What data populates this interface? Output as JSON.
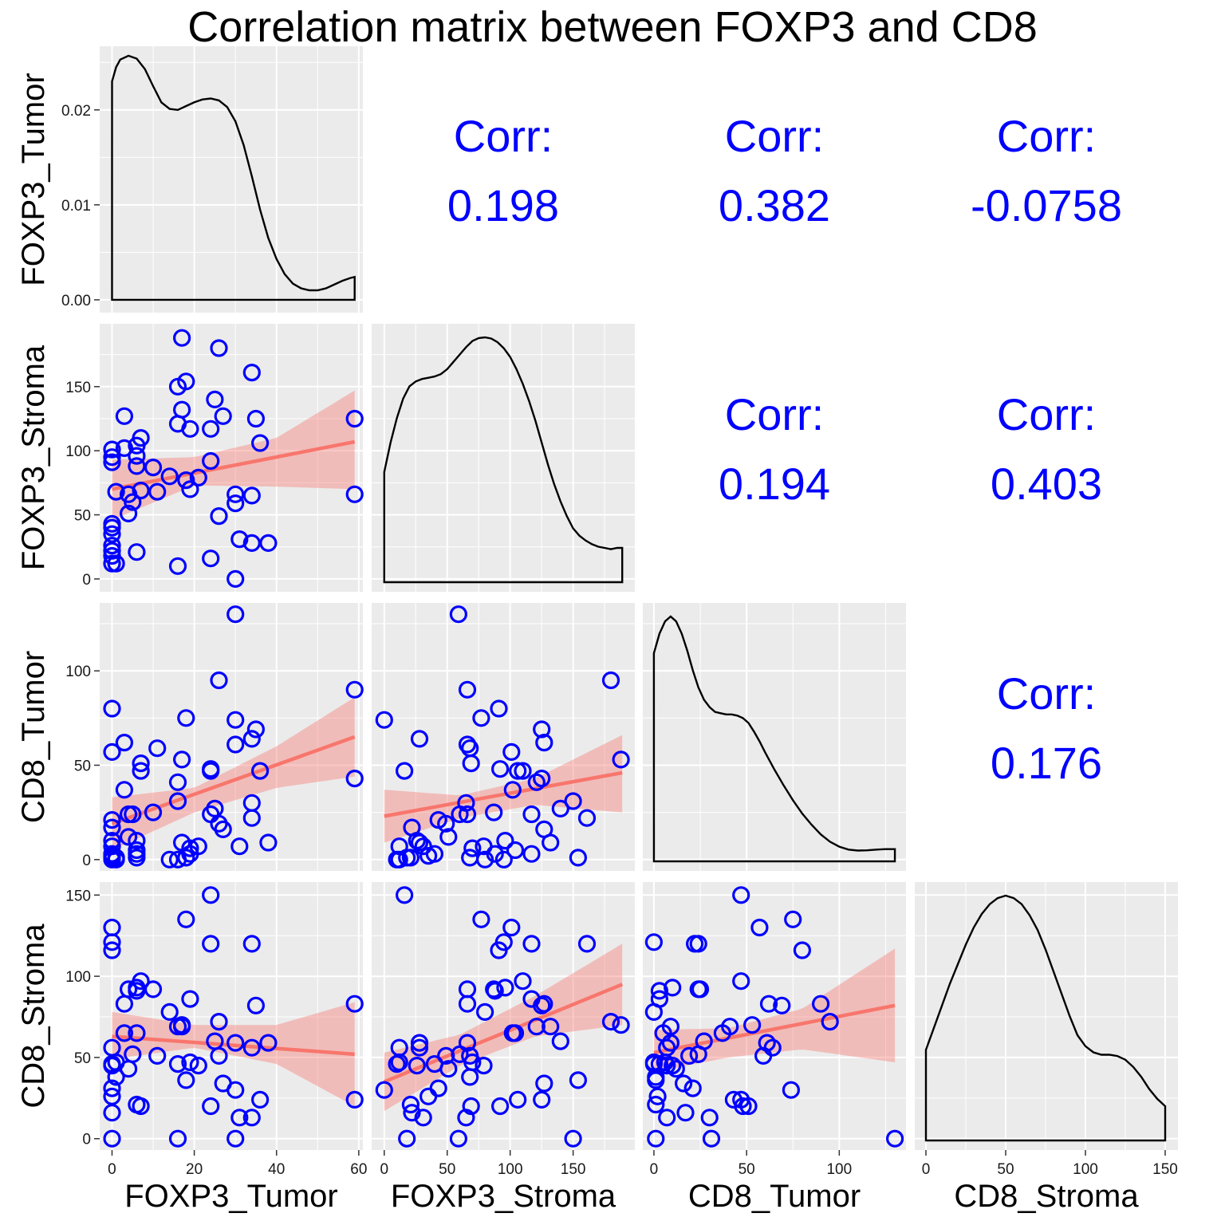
{
  "title": "Correlation matrix between FOXP3 and CD8",
  "variables": [
    "FOXP3_Tumor",
    "FOXP3_Stroma",
    "CD8_Tumor",
    "CD8_Stroma"
  ],
  "colors": {
    "panel": "#ebebeb",
    "grid": "#ffffff",
    "point": "#0000ff",
    "fit": "#f8766d",
    "band": "#f8766d",
    "corr_text": "#0000ff",
    "density": "#000000"
  },
  "chart_data": {
    "type": "scatter",
    "layout": "pairs-matrix 4x4: density on diagonal, scatter with linear fit + 95% band in lower triangle, correlation in upper triangle",
    "corr_label": "Corr:",
    "correlations": [
      {
        "row": 0,
        "col": 1,
        "value": "0.198"
      },
      {
        "row": 0,
        "col": 2,
        "value": "0.382"
      },
      {
        "row": 0,
        "col": 3,
        "value": "-0.0758"
      },
      {
        "row": 1,
        "col": 2,
        "value": "0.194"
      },
      {
        "row": 1,
        "col": 3,
        "value": "0.403"
      },
      {
        "row": 2,
        "col": 3,
        "value": "0.176"
      }
    ],
    "axes": {
      "FOXP3_Tumor": {
        "range": [
          -3,
          61
        ],
        "breaks": [
          0,
          20,
          40,
          60
        ],
        "labels": [
          "0",
          "20",
          "40",
          "60"
        ],
        "minor": [
          10,
          30,
          50
        ]
      },
      "FOXP3_Stroma": {
        "range": [
          -10,
          199
        ],
        "breaks": [
          0,
          50,
          100,
          150
        ],
        "labels": [
          "0",
          "50",
          "100",
          "150"
        ],
        "minor": [
          25,
          75,
          125,
          175
        ]
      },
      "CD8_Tumor": {
        "range": [
          -6,
          136
        ],
        "breaks": [
          0,
          50,
          100
        ],
        "labels": [
          "0",
          "50",
          "100"
        ],
        "minor": [
          25,
          75,
          125
        ]
      },
      "CD8_Stroma": {
        "range": [
          -7,
          158
        ],
        "breaks": [
          0,
          50,
          100,
          150
        ],
        "labels": [
          "0",
          "50",
          "100",
          "150"
        ],
        "minor": [
          25,
          75,
          125
        ]
      }
    },
    "density_axis": {
      "range": [
        -0.00135,
        0.0267
      ],
      "breaks": [
        0,
        0.01,
        0.02
      ],
      "labels": [
        "0.00",
        "0.01",
        "0.02"
      ],
      "minor": [
        0.005,
        0.015,
        0.025
      ]
    },
    "densities": [
      {
        "var": "FOXP3_Tumor",
        "points": [
          [
            0,
            0.023
          ],
          [
            1,
            0.0245
          ],
          [
            2,
            0.0253
          ],
          [
            4,
            0.0257
          ],
          [
            6,
            0.0254
          ],
          [
            8,
            0.0243
          ],
          [
            10,
            0.0225
          ],
          [
            12,
            0.0208
          ],
          [
            14,
            0.0201
          ],
          [
            16,
            0.02
          ],
          [
            18,
            0.0204
          ],
          [
            20,
            0.0208
          ],
          [
            22,
            0.0211
          ],
          [
            24,
            0.0212
          ],
          [
            26,
            0.021
          ],
          [
            28,
            0.0203
          ],
          [
            30,
            0.0188
          ],
          [
            32,
            0.0163
          ],
          [
            34,
            0.013
          ],
          [
            36,
            0.0095
          ],
          [
            38,
            0.0065
          ],
          [
            40,
            0.0043
          ],
          [
            42,
            0.0027
          ],
          [
            44,
            0.0017
          ],
          [
            46,
            0.0012
          ],
          [
            48,
            0.001
          ],
          [
            50,
            0.001
          ],
          [
            52,
            0.0012
          ],
          [
            54,
            0.0016
          ],
          [
            56,
            0.002
          ],
          [
            58,
            0.0023
          ],
          [
            59,
            0.0024
          ]
        ]
      },
      {
        "var": "FOXP3_Stroma",
        "points": [
          [
            0,
            0.45
          ],
          [
            5,
            0.57
          ],
          [
            10,
            0.67
          ],
          [
            15,
            0.75
          ],
          [
            20,
            0.8
          ],
          [
            25,
            0.82
          ],
          [
            30,
            0.83
          ],
          [
            35,
            0.835
          ],
          [
            40,
            0.84
          ],
          [
            45,
            0.85
          ],
          [
            50,
            0.87
          ],
          [
            55,
            0.9
          ],
          [
            60,
            0.93
          ],
          [
            65,
            0.96
          ],
          [
            70,
            0.985
          ],
          [
            75,
            0.997
          ],
          [
            80,
            1.0
          ],
          [
            85,
            0.995
          ],
          [
            90,
            0.98
          ],
          [
            95,
            0.955
          ],
          [
            100,
            0.92
          ],
          [
            105,
            0.87
          ],
          [
            110,
            0.81
          ],
          [
            115,
            0.74
          ],
          [
            120,
            0.66
          ],
          [
            125,
            0.57
          ],
          [
            130,
            0.48
          ],
          [
            135,
            0.4
          ],
          [
            140,
            0.33
          ],
          [
            145,
            0.27
          ],
          [
            150,
            0.22
          ],
          [
            155,
            0.19
          ],
          [
            160,
            0.17
          ],
          [
            165,
            0.155
          ],
          [
            170,
            0.145
          ],
          [
            175,
            0.14
          ],
          [
            180,
            0.135
          ],
          [
            185,
            0.14
          ],
          [
            189,
            0.14
          ]
        ]
      },
      {
        "var": "CD8_Tumor",
        "points": [
          [
            0,
            0.85
          ],
          [
            3,
            0.93
          ],
          [
            6,
            0.98
          ],
          [
            9,
            1.0
          ],
          [
            12,
            0.98
          ],
          [
            15,
            0.93
          ],
          [
            18,
            0.86
          ],
          [
            21,
            0.78
          ],
          [
            24,
            0.71
          ],
          [
            27,
            0.66
          ],
          [
            30,
            0.63
          ],
          [
            33,
            0.61
          ],
          [
            36,
            0.605
          ],
          [
            39,
            0.6
          ],
          [
            42,
            0.6
          ],
          [
            45,
            0.595
          ],
          [
            48,
            0.585
          ],
          [
            51,
            0.565
          ],
          [
            54,
            0.53
          ],
          [
            57,
            0.49
          ],
          [
            60,
            0.445
          ],
          [
            65,
            0.375
          ],
          [
            70,
            0.31
          ],
          [
            75,
            0.25
          ],
          [
            80,
            0.195
          ],
          [
            85,
            0.15
          ],
          [
            90,
            0.11
          ],
          [
            95,
            0.08
          ],
          [
            100,
            0.06
          ],
          [
            105,
            0.048
          ],
          [
            110,
            0.044
          ],
          [
            115,
            0.045
          ],
          [
            120,
            0.048
          ],
          [
            125,
            0.05
          ],
          [
            130,
            0.05
          ]
        ]
      },
      {
        "var": "CD8_Stroma",
        "points": [
          [
            0,
            0.37
          ],
          [
            5,
            0.46
          ],
          [
            10,
            0.55
          ],
          [
            15,
            0.64
          ],
          [
            20,
            0.72
          ],
          [
            25,
            0.8
          ],
          [
            30,
            0.87
          ],
          [
            35,
            0.925
          ],
          [
            40,
            0.965
          ],
          [
            45,
            0.99
          ],
          [
            50,
            1.0
          ],
          [
            55,
            0.99
          ],
          [
            60,
            0.965
          ],
          [
            65,
            0.92
          ],
          [
            70,
            0.86
          ],
          [
            75,
            0.78
          ],
          [
            80,
            0.69
          ],
          [
            85,
            0.6
          ],
          [
            90,
            0.51
          ],
          [
            95,
            0.43
          ],
          [
            100,
            0.385
          ],
          [
            105,
            0.36
          ],
          [
            110,
            0.35
          ],
          [
            115,
            0.35
          ],
          [
            120,
            0.345
          ],
          [
            125,
            0.33
          ],
          [
            130,
            0.3
          ],
          [
            135,
            0.26
          ],
          [
            140,
            0.21
          ],
          [
            145,
            0.17
          ],
          [
            150,
            0.14
          ]
        ]
      }
    ],
    "fits": [
      {
        "row": 1,
        "col": 0,
        "line": [
          [
            0,
            70
          ],
          [
            59,
            107
          ]
        ],
        "band": {
          "x": [
            0,
            20,
            40,
            59
          ],
          "lo": [
            46,
            73,
            72,
            70
          ],
          "hi": [
            93,
            95,
            110,
            147
          ]
        }
      },
      {
        "row": 2,
        "col": 0,
        "line": [
          [
            0,
            19
          ],
          [
            59,
            65
          ]
        ],
        "band": {
          "x": [
            0,
            20,
            40,
            59
          ],
          "lo": [
            5,
            25,
            38,
            44
          ],
          "hi": [
            33,
            38,
            60,
            86
          ]
        }
      },
      {
        "row": 2,
        "col": 1,
        "line": [
          [
            0,
            23
          ],
          [
            189,
            46
          ]
        ],
        "band": {
          "x": [
            0,
            60,
            120,
            189
          ],
          "lo": [
            9,
            22,
            29,
            25
          ],
          "hi": [
            37,
            34,
            43,
            66
          ]
        }
      },
      {
        "row": 3,
        "col": 0,
        "line": [
          [
            0,
            63
          ],
          [
            59,
            52
          ]
        ],
        "band": {
          "x": [
            0,
            20,
            40,
            59
          ],
          "lo": [
            49,
            56,
            46,
            20
          ],
          "hi": [
            78,
            70,
            70,
            84
          ]
        }
      },
      {
        "row": 3,
        "col": 1,
        "line": [
          [
            0,
            35
          ],
          [
            189,
            95
          ]
        ],
        "band": {
          "x": [
            0,
            60,
            120,
            189
          ],
          "lo": [
            17,
            45,
            63,
            70
          ],
          "hi": [
            53,
            64,
            88,
            120
          ]
        }
      },
      {
        "row": 3,
        "col": 2,
        "line": [
          [
            0,
            53
          ],
          [
            130,
            82
          ]
        ],
        "band": {
          "x": [
            0,
            40,
            80,
            130
          ],
          "lo": [
            41,
            50,
            55,
            47
          ],
          "hi": [
            67,
            68,
            80,
            117
          ]
        }
      }
    ],
    "observations": {
      "FOXP3_Tumor": [
        0,
        0,
        0,
        0,
        0,
        0,
        0,
        0,
        0,
        0,
        1,
        1,
        3,
        3,
        4,
        4,
        5,
        6,
        6,
        6,
        6,
        7,
        7,
        10,
        11,
        14,
        16,
        16,
        16,
        17,
        17,
        18,
        18,
        19,
        19,
        21,
        24,
        24,
        24,
        25,
        26,
        26,
        27,
        30,
        30,
        30,
        31,
        34,
        34,
        34,
        35,
        36,
        38,
        59,
        59
      ],
      "FOXP3_Stroma": [
        40,
        12,
        91,
        101,
        95,
        43,
        22,
        35,
        26,
        18,
        12,
        68,
        127,
        102,
        51,
        66,
        60,
        104,
        96,
        88,
        21,
        69,
        110,
        87,
        68,
        80,
        150,
        121,
        10,
        188,
        132,
        77,
        154,
        117,
        70,
        79,
        117,
        92,
        16,
        140,
        180,
        49,
        127,
        59,
        66,
        0,
        31,
        161,
        65,
        28,
        125,
        106,
        28,
        125,
        66
      ],
      "CD8_Tumor": [
        3,
        7,
        80,
        57,
        0,
        21,
        17,
        2,
        10,
        1,
        0,
        1,
        62,
        37,
        12,
        24,
        24,
        5,
        10,
        3,
        1,
        51,
        47,
        25,
        59,
        0,
        31,
        41,
        0,
        53,
        9,
        75,
        1,
        3,
        6,
        7,
        24,
        48,
        47,
        27,
        95,
        19,
        16,
        130,
        61,
        74,
        7,
        22,
        30,
        64,
        69,
        47,
        9,
        43,
        90
      ],
      "CD8_Stroma": [
        46,
        56,
        116,
        130,
        121,
        31,
        16,
        26,
        45,
        0,
        47,
        38,
        83,
        65,
        43,
        92,
        52,
        65,
        93,
        91,
        21,
        20,
        97,
        92,
        51,
        78,
        0,
        69,
        46,
        70,
        69,
        135,
        36,
        86,
        47,
        45,
        120,
        20,
        150,
        60,
        72,
        51,
        34,
        0,
        59,
        30,
        13,
        120,
        13,
        56,
        82,
        24,
        59,
        24,
        83
      ]
    }
  }
}
